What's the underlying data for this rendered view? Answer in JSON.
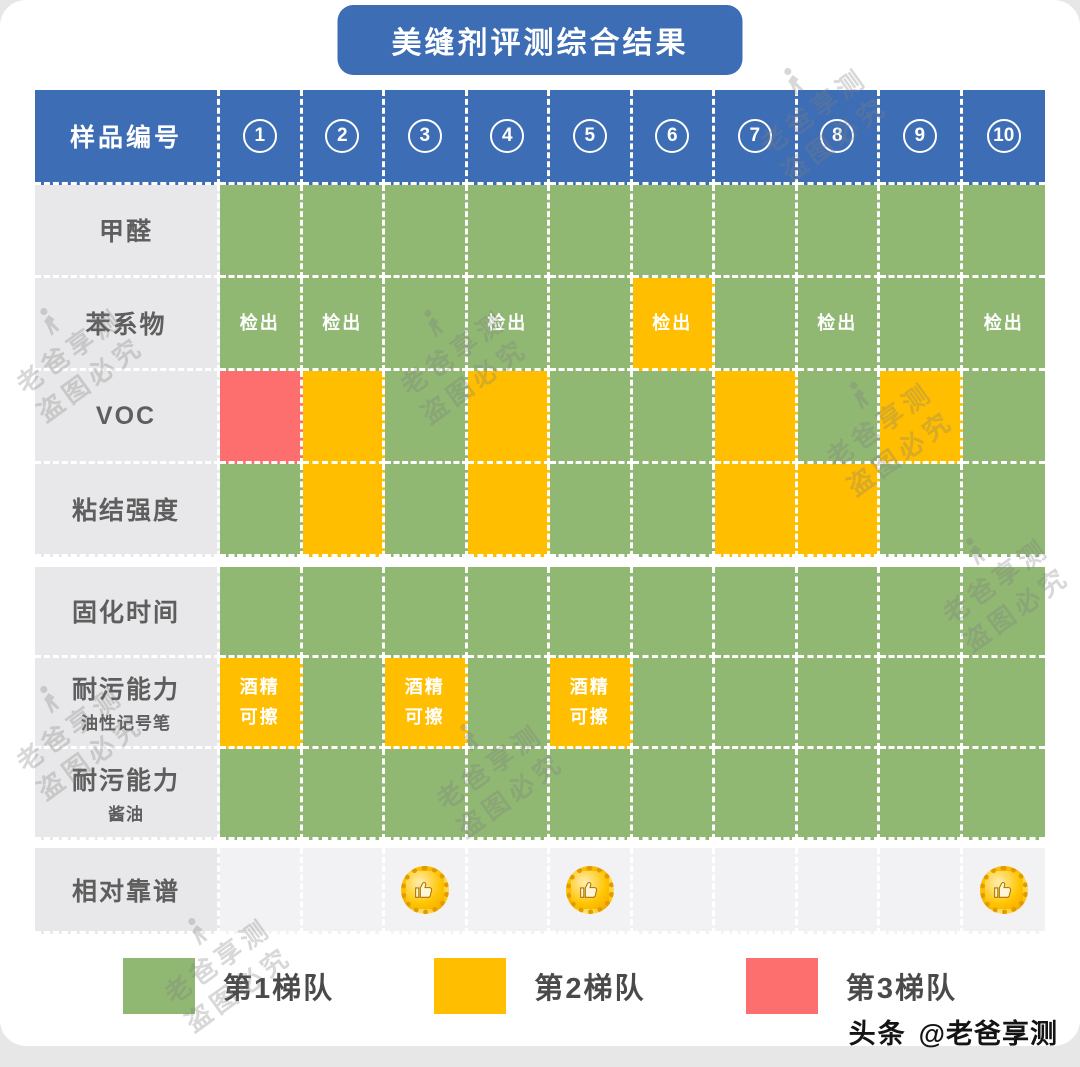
{
  "title": "美缝剂评测综合结果",
  "colors": {
    "header-blue": "#3D6DB5",
    "tier1-green": "#90B873",
    "tier2-yellow": "#FFBE00",
    "tier3-red": "#FD6F6F",
    "label-gray": "#E8E8EA",
    "light-row": "#F2F2F5",
    "label-text": "#5E5E5E",
    "legend-text": "#4A4A4A"
  },
  "table": {
    "header_label": "样品编号",
    "columns": [
      "1",
      "2",
      "3",
      "4",
      "5",
      "6",
      "7",
      "8",
      "9",
      "10"
    ],
    "groups": [
      {
        "rows": [
          {
            "label": "甲醛",
            "cells": [
              "green",
              "green",
              "green",
              "green",
              "green",
              "green",
              "green",
              "green",
              "green",
              "green"
            ]
          },
          {
            "label": "苯系物",
            "cells": [
              "green|检出",
              "green|检出",
              "green",
              "green|检出",
              "green",
              "yellow|检出",
              "green",
              "green|检出",
              "green",
              "green|检出"
            ]
          },
          {
            "label": "VOC",
            "cells": [
              "red",
              "yellow",
              "green",
              "yellow",
              "green",
              "green",
              "yellow",
              "green",
              "yellow",
              "green"
            ]
          },
          {
            "label": "粘结强度",
            "cells": [
              "green",
              "yellow",
              "green",
              "yellow",
              "green",
              "green",
              "yellow",
              "yellow",
              "green",
              "green"
            ]
          }
        ]
      },
      {
        "rows": [
          {
            "label": "固化时间",
            "cells": [
              "green",
              "green",
              "green",
              "green",
              "green",
              "green",
              "green",
              "green",
              "green",
              "green"
            ]
          },
          {
            "label": "耐污能力",
            "sublabel": "油性记号笔",
            "cells": [
              "yellow|酒精\n可擦",
              "green",
              "yellow|酒精\n可擦",
              "green",
              "yellow|酒精\n可擦",
              "green",
              "green",
              "green",
              "green",
              "green"
            ]
          },
          {
            "label": "耐污能力",
            "sublabel": "酱油",
            "cells": [
              "green",
              "green",
              "green",
              "green",
              "green",
              "green",
              "green",
              "green",
              "green",
              "green"
            ]
          }
        ]
      },
      {
        "rows": [
          {
            "label": "相对靠谱",
            "cells": [
              "light",
              "light",
              "light|@thumb",
              "light",
              "light|@thumb",
              "light",
              "light",
              "light",
              "light",
              "light|@thumb"
            ]
          }
        ]
      }
    ]
  },
  "legend": [
    {
      "label": "第1梯队",
      "color_key": "tier1-green"
    },
    {
      "label": "第2梯队",
      "color_key": "tier2-yellow"
    },
    {
      "label": "第3梯队",
      "color_key": "tier3-red"
    }
  ],
  "watermark": {
    "line1": "老爸享测",
    "line2": "盗图必究"
  },
  "footer": {
    "brand": "头条",
    "handle": "@老爸享测"
  },
  "chart_data": {
    "type": "heatmap",
    "title": "美缝剂评测综合结果",
    "columns": [
      "①",
      "②",
      "③",
      "④",
      "⑤",
      "⑥",
      "⑦",
      "⑧",
      "⑨",
      "⑩"
    ],
    "rows": [
      "甲醛",
      "苯系物",
      "VOC",
      "粘结强度",
      "固化时间",
      "耐污能力-油性记号笔",
      "耐污能力-酱油",
      "相对靠谱"
    ],
    "tier_values": [
      [
        1,
        1,
        1,
        1,
        1,
        1,
        1,
        1,
        1,
        1
      ],
      [
        1,
        1,
        1,
        1,
        1,
        2,
        1,
        1,
        1,
        1
      ],
      [
        3,
        2,
        1,
        2,
        1,
        1,
        2,
        1,
        2,
        1
      ],
      [
        1,
        2,
        1,
        2,
        1,
        1,
        2,
        2,
        1,
        1
      ],
      [
        1,
        1,
        1,
        1,
        1,
        1,
        1,
        1,
        1,
        1
      ],
      [
        2,
        1,
        2,
        1,
        2,
        1,
        1,
        1,
        1,
        1
      ],
      [
        1,
        1,
        1,
        1,
        1,
        1,
        1,
        1,
        1,
        1
      ],
      [
        null,
        null,
        null,
        null,
        null,
        null,
        null,
        null,
        null,
        null
      ]
    ],
    "cell_annotations": {
      "苯系物_检出_columns": [
        1,
        2,
        4,
        6,
        8,
        10
      ],
      "耐污能力-油性记号笔_酒精可擦_columns": [
        1,
        3,
        5
      ],
      "相对靠谱_点赞_columns": [
        3,
        5,
        10
      ]
    },
    "legend": [
      {
        "tier": 1,
        "label": "第1梯队",
        "color": "#90B873"
      },
      {
        "tier": 2,
        "label": "第2梯队",
        "color": "#FFBE00"
      },
      {
        "tier": 3,
        "label": "第3梯队",
        "color": "#FD6F6F"
      }
    ],
    "legend_position": "bottom"
  }
}
